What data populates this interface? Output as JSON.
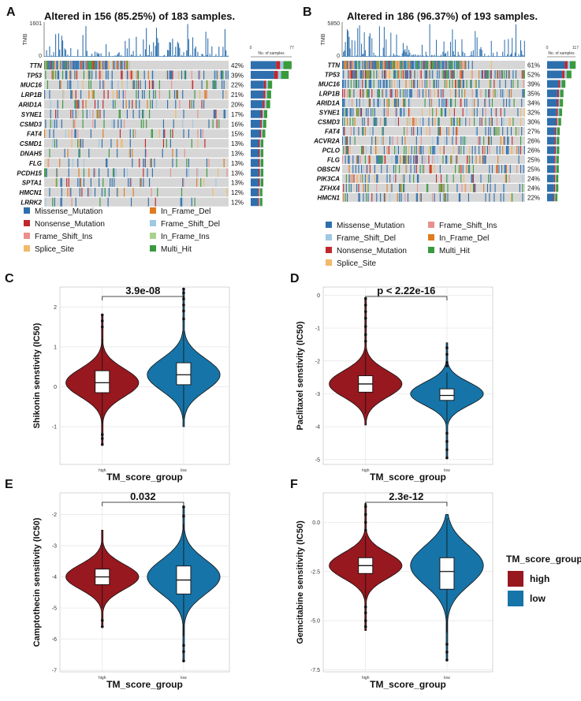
{
  "colors": {
    "Missense_Mutation": "#2e6fad",
    "Nonsense_Mutation": "#c0272d",
    "Frame_Shift_Ins": "#e9908d",
    "Splice_Site": "#f2b96a",
    "In_Frame_Del": "#e07b1f",
    "Frame_Shift_Del": "#9fc8e3",
    "In_Frame_Ins": "#a9d18e",
    "Multi_Hit": "#3a9a3e",
    "bg": "#d6d6d6",
    "high": "#97181f",
    "low": "#1674a8"
  },
  "chart_data": [
    {
      "type": "oncoplot",
      "panel": "A",
      "title": "Altered in 156 (85.25%) of 183 samples.",
      "n_samples": 183,
      "tmb_label": "TMB",
      "tmb_max": "1601",
      "tmb_min": "0",
      "bar_axis_label": "No. of samples",
      "bar_axis_min": "0",
      "bar_axis_max": "77",
      "bar_max": 77,
      "genes": [
        {
          "name": "TTN",
          "pct": "42%"
        },
        {
          "name": "TP53",
          "pct": "39%"
        },
        {
          "name": "MUC16",
          "pct": "22%"
        },
        {
          "name": "LRP1B",
          "pct": "21%"
        },
        {
          "name": "ARID1A",
          "pct": "20%"
        },
        {
          "name": "SYNE1",
          "pct": "17%"
        },
        {
          "name": "CSMD3",
          "pct": "16%"
        },
        {
          "name": "FAT4",
          "pct": "15%"
        },
        {
          "name": "CSMD1",
          "pct": "13%"
        },
        {
          "name": "DNAH5",
          "pct": "13%"
        },
        {
          "name": "FLG",
          "pct": "13%"
        },
        {
          "name": "PCDH15",
          "pct": "13%"
        },
        {
          "name": "SPTA1",
          "pct": "13%"
        },
        {
          "name": "HMCN1",
          "pct": "12%"
        },
        {
          "name": "LRRK2",
          "pct": "12%"
        }
      ],
      "legend": [
        "Missense_Mutation",
        "In_Frame_Del",
        "Nonsense_Mutation",
        "Frame_Shift_Del",
        "Frame_Shift_Ins",
        "In_Frame_Ins",
        "Splice_Site",
        "Multi_Hit"
      ]
    },
    {
      "type": "oncoplot",
      "panel": "B",
      "title": "Altered in 186 (96.37%) of 193 samples.",
      "n_samples": 193,
      "tmb_label": "TMB",
      "tmb_max": "5850",
      "tmb_min": "0",
      "bar_axis_label": "No. of samples",
      "bar_axis_min": "0",
      "bar_axis_max": "117",
      "bar_max": 117,
      "genes": [
        {
          "name": "TTN",
          "pct": "61%"
        },
        {
          "name": "TP53",
          "pct": "52%"
        },
        {
          "name": "MUC16",
          "pct": "39%"
        },
        {
          "name": "LRP1B",
          "pct": "35%"
        },
        {
          "name": "ARID1A",
          "pct": "34%"
        },
        {
          "name": "SYNE1",
          "pct": "32%"
        },
        {
          "name": "CSMD3",
          "pct": "30%"
        },
        {
          "name": "FAT4",
          "pct": "27%"
        },
        {
          "name": "ACVR2A",
          "pct": "26%"
        },
        {
          "name": "PCLO",
          "pct": "26%"
        },
        {
          "name": "FLG",
          "pct": "25%"
        },
        {
          "name": "OBSCN",
          "pct": "25%"
        },
        {
          "name": "PIK3CA",
          "pct": "24%"
        },
        {
          "name": "ZFHX4",
          "pct": "24%"
        },
        {
          "name": "HMCN1",
          "pct": "22%"
        }
      ],
      "legend": [
        "Missense_Mutation",
        "Frame_Shift_Ins",
        "Frame_Shift_Del",
        "In_Frame_Del",
        "Nonsense_Mutation",
        "Multi_Hit",
        "Splice_Site"
      ]
    },
    {
      "type": "violin",
      "panel": "C",
      "xlabel": "TM_score_group",
      "ylabel": "Shikonin senstivity (IC50)",
      "categories": [
        "high",
        "low"
      ],
      "ylim": [
        -1.95,
        2.5
      ],
      "yticks": [
        {
          "v": -1,
          "label": "-1"
        },
        {
          "v": 0,
          "label": "0"
        },
        {
          "v": 1,
          "label": "1"
        },
        {
          "v": 2,
          "label": "2"
        }
      ],
      "significance": "3.9e-08",
      "groups": [
        {
          "name": "high",
          "min": -1.45,
          "max": 1.8,
          "q1": -0.15,
          "median": 0.1,
          "q3": 0.4,
          "wlo": -0.95,
          "whi": 1.2,
          "mode": 0.1,
          "spread": 0.35,
          "outliers": [
            -1.2,
            -1.3,
            -1.45,
            1.5,
            1.65,
            1.8
          ]
        },
        {
          "name": "low",
          "min": -1.0,
          "max": 2.45,
          "q1": 0.05,
          "median": 0.3,
          "q3": 0.6,
          "wlo": -0.8,
          "whi": 1.4,
          "mode": 0.3,
          "spread": 0.4,
          "outliers": [
            1.7,
            1.9,
            2.05,
            2.2,
            2.35,
            2.45
          ]
        }
      ]
    },
    {
      "type": "violin",
      "panel": "D",
      "xlabel": "TM_score_group",
      "ylabel": "Paclitaxel senstivity (IC50)",
      "categories": [
        "high",
        "low"
      ],
      "ylim": [
        -5.15,
        0.25
      ],
      "yticks": [
        {
          "v": -5,
          "label": "-5"
        },
        {
          "v": -4,
          "label": "-4"
        },
        {
          "v": -3,
          "label": "-3"
        },
        {
          "v": -2,
          "label": "-2"
        },
        {
          "v": -1,
          "label": "-1"
        },
        {
          "v": 0,
          "label": "0"
        }
      ],
      "significance": "p < 2.22e-16",
      "groups": [
        {
          "name": "high",
          "min": -3.95,
          "max": -0.1,
          "q1": -2.95,
          "median": -2.7,
          "q3": -2.45,
          "wlo": -3.6,
          "whi": -1.65,
          "mode": -2.7,
          "spread": 0.4,
          "outliers": [
            -1.4,
            -1.2,
            -0.95,
            -0.7,
            -0.5,
            -0.3,
            -0.1
          ]
        },
        {
          "name": "low",
          "min": -4.95,
          "max": -1.45,
          "q1": -3.2,
          "median": -3.05,
          "q3": -2.85,
          "wlo": -3.9,
          "whi": -2.35,
          "mode": -3.0,
          "spread": 0.35,
          "outliers": [
            -1.6,
            -1.8,
            -2.05,
            -2.15,
            -4.2,
            -4.45,
            -4.7,
            -4.95
          ]
        }
      ]
    },
    {
      "type": "violin",
      "panel": "E",
      "xlabel": "TM_score_group",
      "ylabel": "Camptothecin sensitivity (IC50)",
      "categories": [
        "high",
        "low"
      ],
      "ylim": [
        -7.05,
        -1.3
      ],
      "yticks": [
        {
          "v": -7,
          "label": "-7"
        },
        {
          "v": -6,
          "label": "-6"
        },
        {
          "v": -5,
          "label": "-5"
        },
        {
          "v": -4,
          "label": "-4"
        },
        {
          "v": -3,
          "label": "-3"
        },
        {
          "v": -2,
          "label": "-2"
        }
      ],
      "significance": "0.032",
      "groups": [
        {
          "name": "high",
          "min": -5.6,
          "max": -2.5,
          "q1": -4.25,
          "median": -4.0,
          "q3": -3.75,
          "wlo": -5.0,
          "whi": -2.9,
          "mode": -4.0,
          "spread": 0.4,
          "outliers": [
            -5.6,
            -5.4
          ]
        },
        {
          "name": "low",
          "min": -6.7,
          "max": -1.75,
          "q1": -4.55,
          "median": -4.1,
          "q3": -3.65,
          "wlo": -5.9,
          "whi": -2.3,
          "mode": -4.0,
          "spread": 0.55,
          "outliers": [
            -6.2,
            -6.4,
            -6.7,
            -2.05,
            -1.75
          ]
        }
      ]
    },
    {
      "type": "violin",
      "panel": "F",
      "xlabel": "TM_score_group",
      "ylabel": "Gemcitabine sensitivity (IC50)",
      "categories": [
        "high",
        "low"
      ],
      "ylim": [
        -7.6,
        1.5
      ],
      "yticks": [
        {
          "v": -7.5,
          "label": "-7.5"
        },
        {
          "v": -5,
          "label": "-5.0"
        },
        {
          "v": -2.5,
          "label": "-2.5"
        },
        {
          "v": 0,
          "label": "0.0"
        }
      ],
      "significance": "2.3e-12",
      "groups": [
        {
          "name": "high",
          "min": -5.5,
          "max": 0.95,
          "q1": -2.6,
          "median": -2.2,
          "q3": -1.8,
          "wlo": -3.9,
          "whi": -0.7,
          "mode": -2.2,
          "spread": 0.65,
          "outliers": [
            -4.3,
            -4.6,
            -5.0,
            -5.3,
            -0.4,
            0.0,
            0.4,
            0.8
          ]
        },
        {
          "name": "low",
          "min": -7.0,
          "max": 0.4,
          "q1": -3.4,
          "median": -2.5,
          "q3": -1.8,
          "wlo": -5.6,
          "whi": 0.2,
          "mode": -2.2,
          "spread": 1.0,
          "outliers": [
            -6.2,
            -6.6,
            -7.0
          ]
        }
      ]
    }
  ],
  "legend_violin": {
    "title": "TM_score_group",
    "items": [
      "high",
      "low"
    ]
  }
}
